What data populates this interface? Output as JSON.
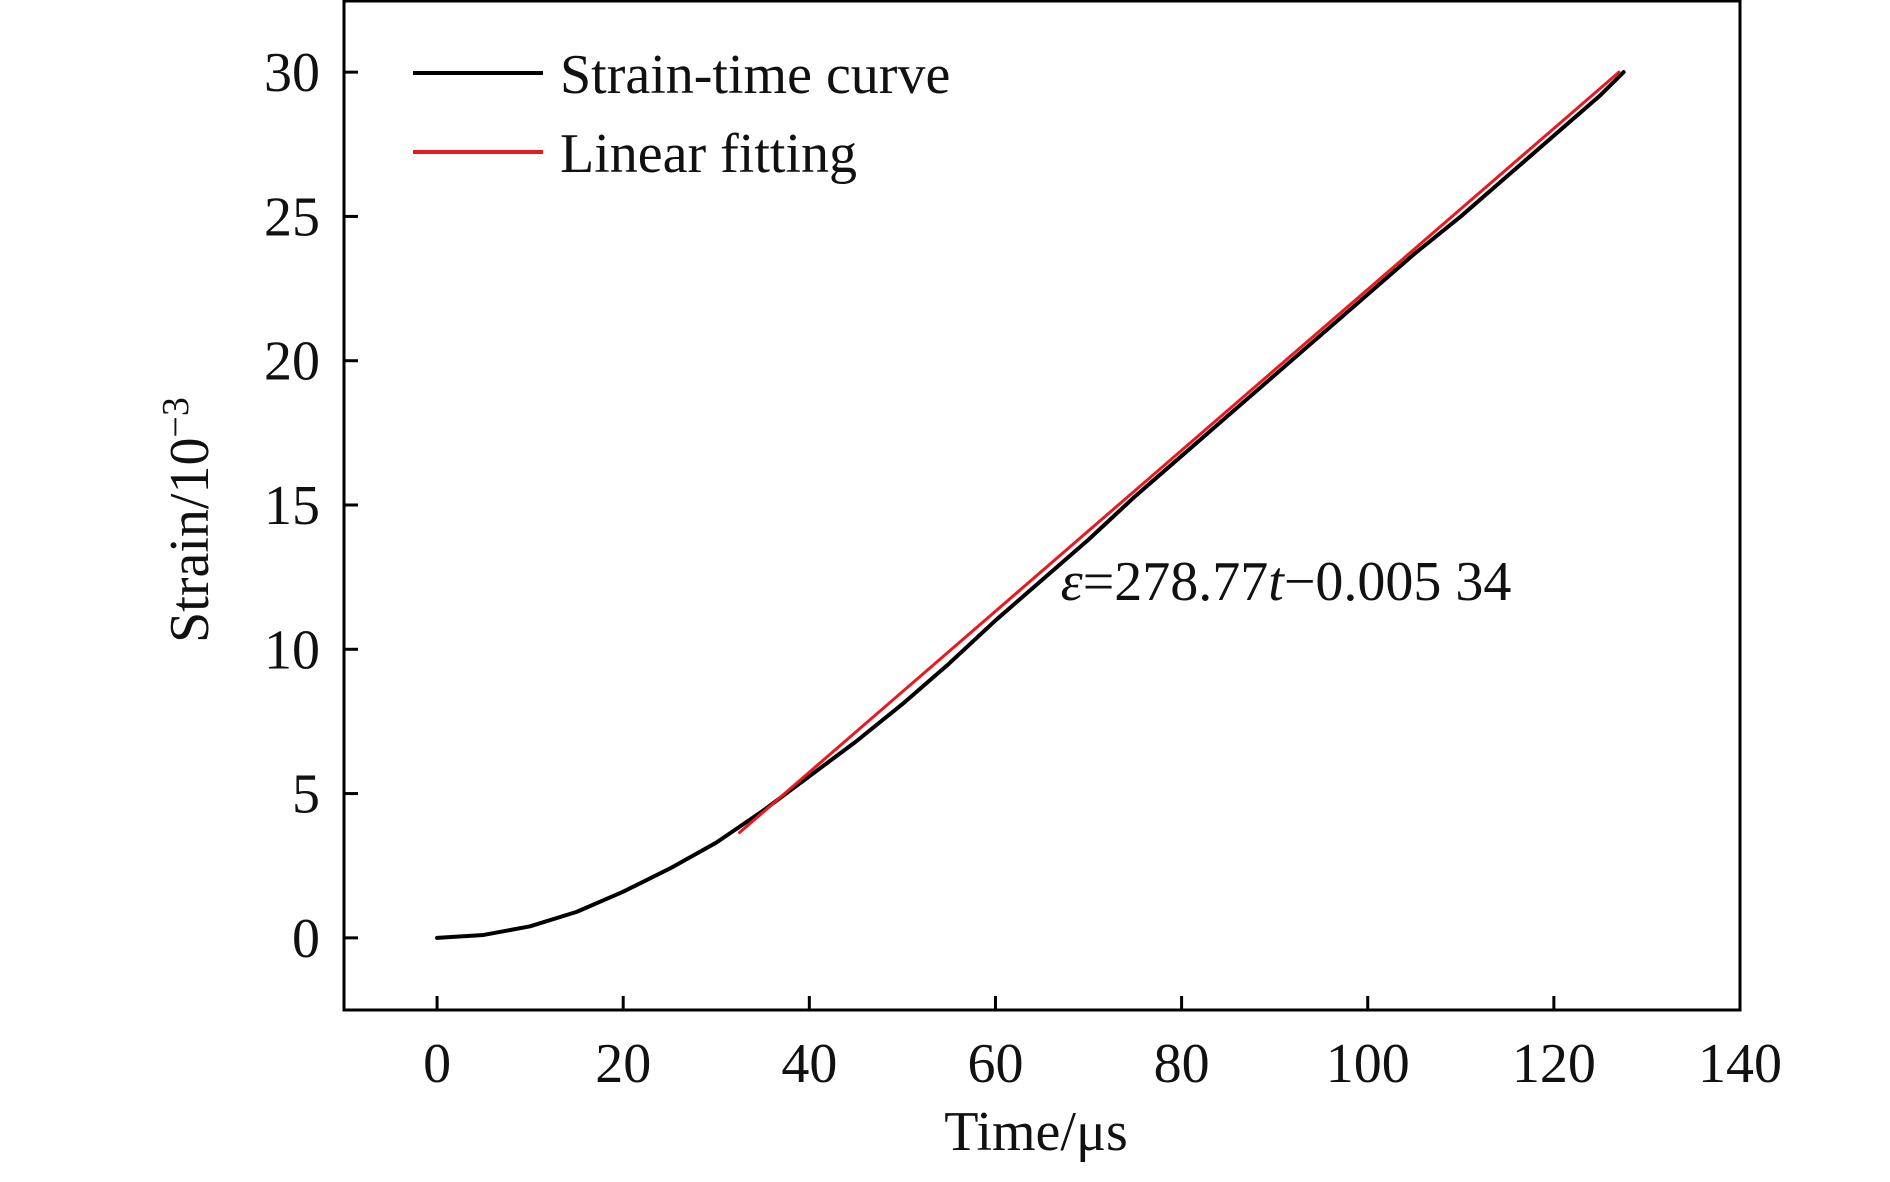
{
  "chart_data": {
    "type": "line",
    "xlabel": "Time/μs",
    "ylabel_base": "Strain/10",
    "ylabel_exp": "−3",
    "xlim": [
      -10,
      140
    ],
    "ylim": [
      -2.5,
      32.5
    ],
    "x_ticks": [
      0,
      20,
      40,
      60,
      80,
      100,
      120,
      140
    ],
    "y_ticks": [
      0,
      5,
      10,
      15,
      20,
      25,
      30
    ],
    "x_tick_labels": [
      "0",
      "20",
      "40",
      "60",
      "80",
      "100",
      "120",
      "140"
    ],
    "y_tick_labels": [
      "0",
      "5",
      "10",
      "15",
      "20",
      "25",
      "30"
    ],
    "grid": false,
    "legend_position": "top-left",
    "series": [
      {
        "name": "Strain-time curve",
        "color": "#000000",
        "x": [
          0,
          5,
          10,
          15,
          20,
          25,
          30,
          35,
          40,
          45,
          50,
          55,
          60,
          65,
          70,
          75,
          80,
          85,
          90,
          95,
          100,
          105,
          110,
          115,
          120,
          125,
          127.5
        ],
        "y": [
          0,
          0.1,
          0.4,
          0.9,
          1.6,
          2.4,
          3.3,
          4.4,
          5.6,
          6.8,
          8.1,
          9.5,
          11.0,
          12.4,
          13.8,
          15.3,
          16.7,
          18.1,
          19.5,
          20.9,
          22.3,
          23.7,
          25.0,
          26.4,
          27.8,
          29.2,
          30.0
        ]
      },
      {
        "name": "Linear fitting",
        "color": "#e8191f",
        "x": [
          32.5,
          127
        ],
        "y": [
          3.65,
          30.0
        ]
      }
    ],
    "annotation": {
      "text_parts": [
        "ε",
        "=278.77",
        "t",
        "−0.005 34"
      ],
      "x": 67,
      "y": 11.7
    }
  }
}
